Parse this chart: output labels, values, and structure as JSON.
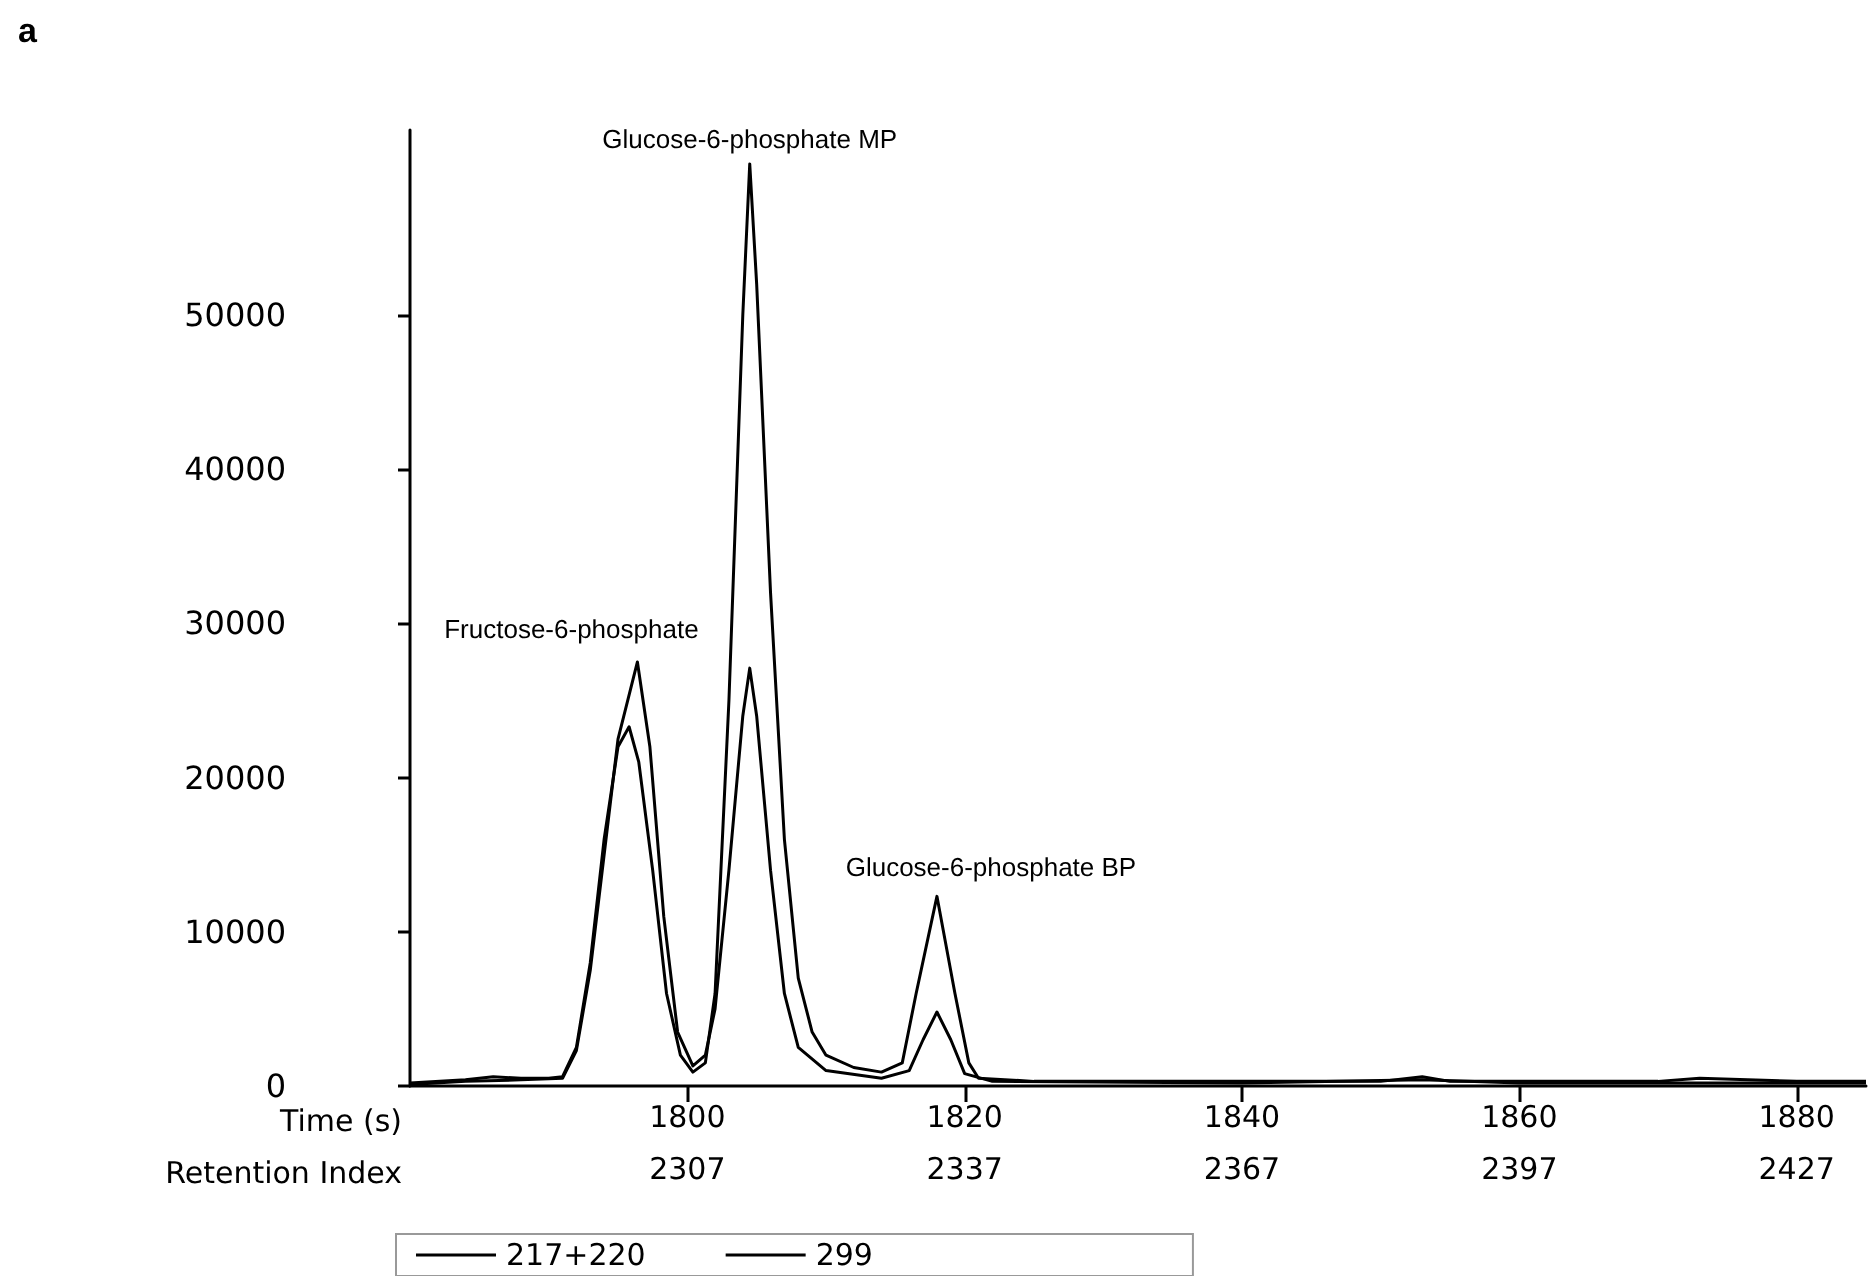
{
  "chart_data": {
    "type": "line",
    "title": "a",
    "xlabel": "Time (s)",
    "x2label": "Retention Index",
    "xlim": [
      1780,
      1885
    ],
    "xticks": [
      1800,
      1820,
      1840,
      1860,
      1880
    ],
    "x2lim": [
      2277,
      2434.5
    ],
    "x2ticks": [
      2307,
      2337,
      2367,
      2397,
      2427
    ],
    "ylim": [
      0,
      62000
    ],
    "yticks": [
      0,
      10000,
      20000,
      30000,
      40000,
      50000
    ],
    "grid": false,
    "legend": "bottom",
    "line_style": "solid",
    "annotations": [
      {
        "text": "Glucose-6-phosphate MP",
        "x": 1804.5,
        "y": 59800
      },
      {
        "text": "Fructose-6-phosphate",
        "x": 1796.4,
        "y": 27500
      },
      {
        "text": "Glucose-6-phosphate BP",
        "x": 1818,
        "y": 12300
      }
    ],
    "series": [
      {
        "name": "217+220",
        "color": "#000000",
        "x": [
          1780,
          1784,
          1786,
          1788,
          1790,
          1791,
          1792,
          1793,
          1794,
          1795,
          1795.8,
          1796.5,
          1797.5,
          1798.5,
          1799.5,
          1800.4,
          1801.3,
          1802,
          1803,
          1804,
          1804.5,
          1805,
          1806,
          1807,
          1808,
          1809,
          1810,
          1812,
          1814,
          1815.5,
          1816.5,
          1818,
          1819.3,
          1820.3,
          1821,
          1825,
          1830,
          1840,
          1850,
          1853,
          1855,
          1870,
          1873,
          1880,
          1885
        ],
        "values": [
          200,
          400,
          600,
          500,
          500,
          600,
          2500,
          8000,
          16000,
          22000,
          23300,
          21000,
          14000,
          6000,
          2000,
          900,
          1500,
          6000,
          25000,
          50000,
          59800,
          52000,
          32000,
          16000,
          7000,
          3500,
          2000,
          1200,
          900,
          1500,
          6000,
          12300,
          6000,
          1500,
          500,
          300,
          300,
          300,
          300,
          600,
          300,
          300,
          500,
          300,
          300
        ]
      },
      {
        "name": "299",
        "color": "#000000",
        "x": [
          1780,
          1784,
          1788,
          1791,
          1792,
          1793,
          1794,
          1795,
          1796.4,
          1797.3,
          1798.3,
          1799.3,
          1800.4,
          1801.3,
          1802,
          1803,
          1804,
          1804.5,
          1805,
          1806,
          1807,
          1808,
          1810,
          1814,
          1816,
          1817,
          1818,
          1819,
          1820,
          1822,
          1840,
          1853,
          1860,
          1885
        ],
        "values": [
          100,
          300,
          400,
          500,
          2300,
          7500,
          15000,
          22500,
          27500,
          22000,
          11000,
          3500,
          1300,
          2000,
          5000,
          14000,
          24000,
          27100,
          24000,
          14000,
          6000,
          2500,
          1000,
          500,
          1000,
          3000,
          4800,
          3000,
          800,
          300,
          200,
          400,
          200,
          200
        ]
      }
    ]
  }
}
